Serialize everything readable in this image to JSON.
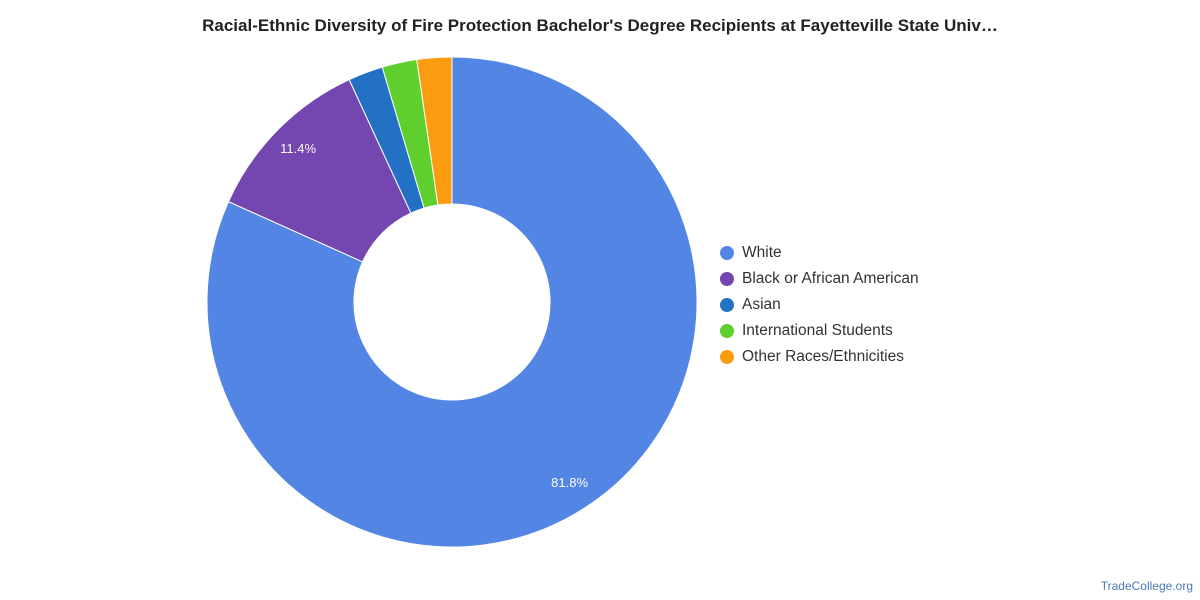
{
  "chart_data": {
    "type": "pie",
    "title": "Racial-Ethnic Diversity of Fire Protection Bachelor's Degree Recipients at Fayetteville State Univ…",
    "donut": true,
    "legend_position": "right",
    "slices": [
      {
        "label": "White",
        "value": 81.8,
        "color": "#5386e4",
        "data_label": "81.8%"
      },
      {
        "label": "Black or African American",
        "value": 11.4,
        "color": "#7446b0",
        "data_label": "11.4%"
      },
      {
        "label": "Asian",
        "value": 2.3,
        "color": "#2271c5",
        "data_label": ""
      },
      {
        "label": "International Students",
        "value": 2.3,
        "color": "#5ecf2c",
        "data_label": ""
      },
      {
        "label": "Other Races/Ethnicities",
        "value": 2.3,
        "color": "#fb9b10",
        "data_label": ""
      }
    ]
  },
  "credit": "TradeCollege.org"
}
